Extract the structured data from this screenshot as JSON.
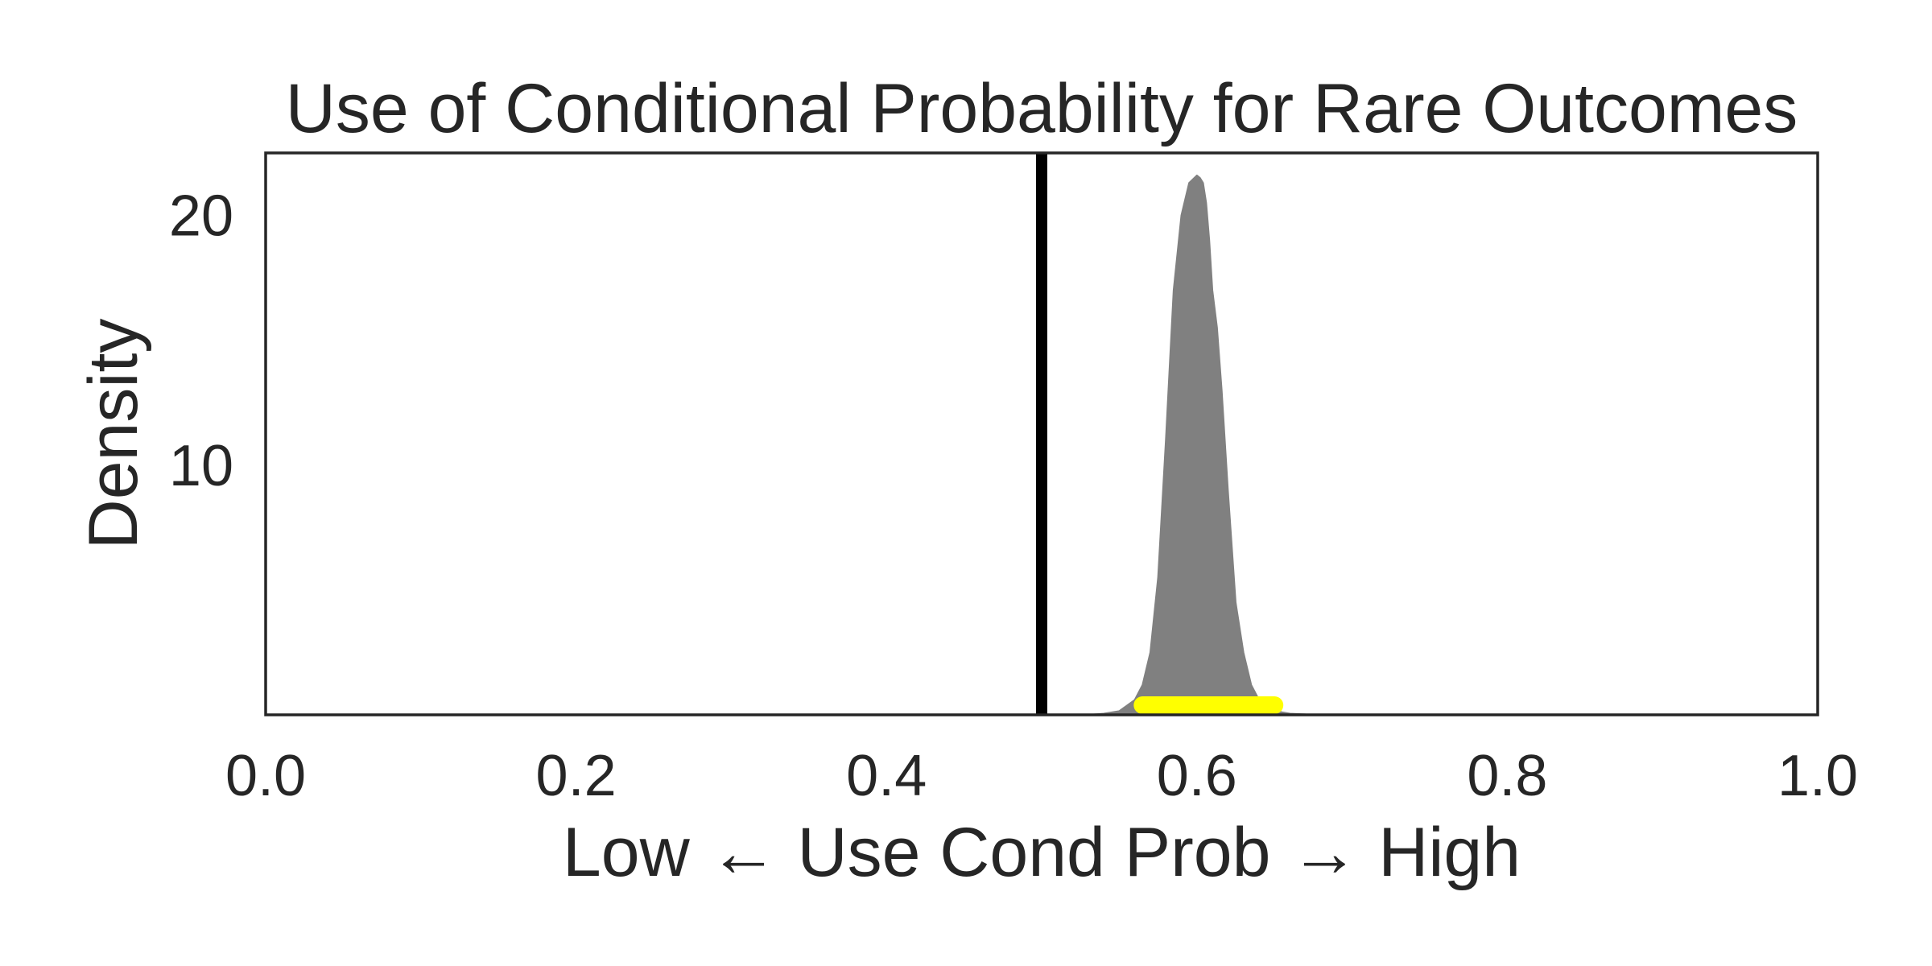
{
  "chart_data": {
    "type": "area",
    "title": "Use of Conditional Probability for Rare Outcomes",
    "xlabel": "Low ← Use Cond Prob → High",
    "ylabel": "Density",
    "xlim": [
      0.0,
      1.0
    ],
    "ylim": [
      0,
      22.5
    ],
    "x_ticks": [
      "0.0",
      "0.2",
      "0.4",
      "0.6",
      "0.8",
      "1.0"
    ],
    "x_tick_values": [
      0.0,
      0.2,
      0.4,
      0.6,
      0.8,
      1.0
    ],
    "y_ticks": [
      "10",
      "20"
    ],
    "y_tick_values": [
      10,
      20
    ],
    "grid": false,
    "series": [
      {
        "kind": "density",
        "color": "#808080",
        "x": [
          0.53,
          0.54,
          0.55,
          0.56,
          0.565,
          0.57,
          0.575,
          0.58,
          0.585,
          0.59,
          0.595,
          0.6,
          0.602,
          0.604,
          0.606,
          0.608,
          0.61,
          0.613,
          0.616,
          0.62,
          0.625,
          0.63,
          0.635,
          0.64,
          0.645,
          0.65,
          0.655,
          0.66,
          0.67,
          0.68,
          0.69,
          0.7
        ],
        "y": [
          0.0,
          0.05,
          0.15,
          0.6,
          1.2,
          2.5,
          5.5,
          11.0,
          17.0,
          20.0,
          21.3,
          21.6,
          21.5,
          21.3,
          20.5,
          19.0,
          17.0,
          15.5,
          13.0,
          9.0,
          4.5,
          2.5,
          1.2,
          0.6,
          0.4,
          0.2,
          0.1,
          0.05,
          0.02,
          0.01,
          0.0,
          0.0
        ]
      }
    ],
    "reference_line": {
      "x": 0.5,
      "color": "#000000"
    },
    "interval": {
      "low": 0.565,
      "high": 0.65,
      "color": "#ffff00"
    }
  }
}
